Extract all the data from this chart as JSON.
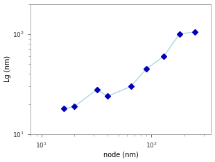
{
  "x": [
    16,
    20,
    32,
    40,
    65,
    90,
    130,
    180,
    250
  ],
  "y": [
    18,
    19,
    28,
    24,
    30,
    45,
    60,
    100,
    105
  ],
  "line_color": "#99ccdd",
  "marker_color": "#0000bb",
  "marker_size": 4,
  "xlabel": "node (nm)",
  "ylabel": "Lg (nm)",
  "xlim": [
    8,
    350
  ],
  "ylim": [
    10,
    200
  ],
  "background_color": "#ffffff"
}
